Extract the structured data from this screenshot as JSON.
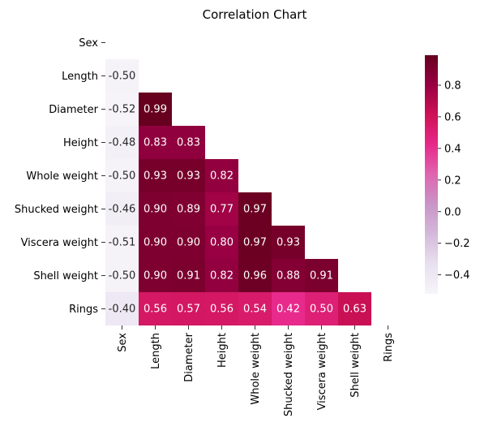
{
  "chart_data": {
    "type": "heatmap",
    "title": "Correlation Chart",
    "rows": [
      "Sex",
      "Length",
      "Diameter",
      "Height",
      "Whole weight",
      "Shucked weight",
      "Viscera weight",
      "Shell weight",
      "Rings"
    ],
    "columns": [
      "Sex",
      "Length",
      "Diameter",
      "Height",
      "Whole weight",
      "Shucked weight",
      "Viscera weight",
      "Shell weight",
      "Rings"
    ],
    "mask": "upper-triangle-including-diagonal",
    "values": [
      [
        null,
        null,
        null,
        null,
        null,
        null,
        null,
        null,
        null
      ],
      [
        -0.5,
        null,
        null,
        null,
        null,
        null,
        null,
        null,
        null
      ],
      [
        -0.52,
        0.99,
        null,
        null,
        null,
        null,
        null,
        null,
        null
      ],
      [
        -0.48,
        0.83,
        0.83,
        null,
        null,
        null,
        null,
        null,
        null
      ],
      [
        -0.5,
        0.93,
        0.93,
        0.82,
        null,
        null,
        null,
        null,
        null
      ],
      [
        -0.46,
        0.9,
        0.89,
        0.77,
        0.97,
        null,
        null,
        null,
        null
      ],
      [
        -0.51,
        0.9,
        0.9,
        0.8,
        0.97,
        0.93,
        null,
        null,
        null
      ],
      [
        -0.5,
        0.9,
        0.91,
        0.82,
        0.96,
        0.88,
        0.91,
        null,
        null
      ],
      [
        -0.4,
        0.56,
        0.57,
        0.56,
        0.54,
        0.42,
        0.5,
        0.63,
        null
      ]
    ],
    "value_labels": [
      [],
      [
        "-0.50"
      ],
      [
        "-0.52",
        "0.99"
      ],
      [
        "-0.48",
        "0.83",
        "0.83"
      ],
      [
        "-0.50",
        "0.93",
        "0.93",
        "0.82"
      ],
      [
        "-0.46",
        "0.90",
        "0.89",
        "0.77",
        "0.97"
      ],
      [
        "-0.51",
        "0.90",
        "0.90",
        "0.80",
        "0.97",
        "0.93"
      ],
      [
        "-0.50",
        "0.90",
        "0.91",
        "0.82",
        "0.96",
        "0.88",
        "0.91"
      ],
      [
        "-0.40",
        "0.56",
        "0.57",
        "0.56",
        "0.54",
        "0.42",
        "0.50",
        "0.63"
      ]
    ],
    "colormap": "PuRd",
    "colormap_stops": [
      "#f7f4f9",
      "#e7e1ef",
      "#d4b9da",
      "#c994c7",
      "#df65b0",
      "#e7298a",
      "#ce1256",
      "#980043",
      "#67001f"
    ],
    "vmin": -0.52,
    "vmax": 0.99,
    "colorbar": {
      "ticks": [
        -0.4,
        -0.2,
        0.0,
        0.2,
        0.4,
        0.6,
        0.8
      ],
      "tick_labels": [
        "−0.4",
        "−0.2",
        "0.0",
        "0.2",
        "0.4",
        "0.6",
        "0.8"
      ]
    },
    "grid": false,
    "legend": "colorbar-right"
  }
}
